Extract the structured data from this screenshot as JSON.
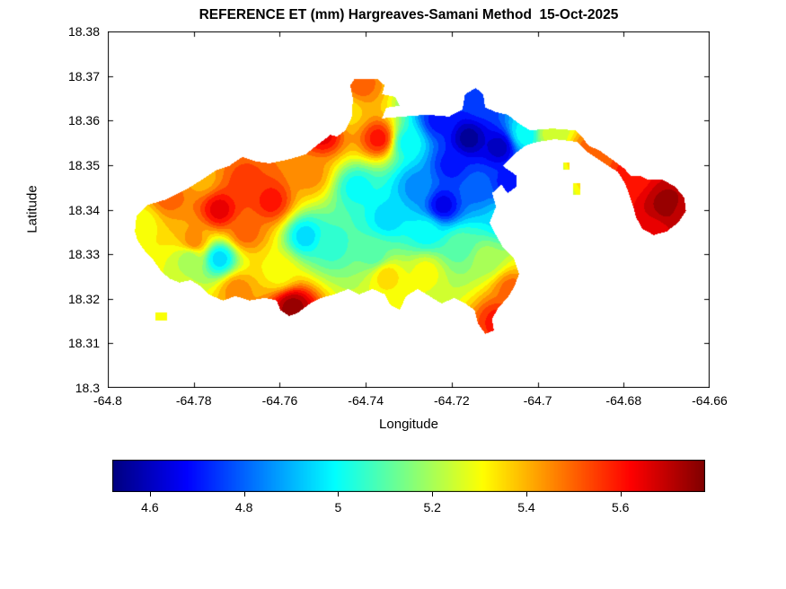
{
  "chart_data": {
    "type": "heatmap",
    "title": "REFERENCE ET (mm) Hargreaves-Samani Method  15-Oct-2025",
    "date_label": "15-Oct-2025",
    "method_label": "Hargreaves-Samani Method",
    "units": "mm",
    "xlabel": "Longitude",
    "ylabel": "Latitude",
    "xlim": [
      -64.8,
      -64.66
    ],
    "ylim": [
      18.3,
      18.38
    ],
    "grid": false,
    "colormap": "jet",
    "colorbar_orientation": "horizontal",
    "value_range": [
      4.52,
      5.78
    ],
    "contour_step": 0.05,
    "x_ticks": [
      {
        "label": "-64.8",
        "value": -64.8
      },
      {
        "label": "-64.78",
        "value": -64.78
      },
      {
        "label": "-64.76",
        "value": -64.76
      },
      {
        "label": "-64.74",
        "value": -64.74
      },
      {
        "label": "-64.72",
        "value": -64.72
      },
      {
        "label": "-64.7",
        "value": -64.7
      },
      {
        "label": "-64.68",
        "value": -64.68
      },
      {
        "label": "-64.66",
        "value": -64.66
      }
    ],
    "y_ticks": [
      {
        "label": "18.38",
        "value": 18.38
      },
      {
        "label": "18.37",
        "value": 18.37
      },
      {
        "label": "18.36",
        "value": 18.36
      },
      {
        "label": "18.35",
        "value": 18.35
      },
      {
        "label": "18.34",
        "value": 18.34
      },
      {
        "label": "18.33",
        "value": 18.33
      },
      {
        "label": "18.32",
        "value": 18.32
      },
      {
        "label": "18.31",
        "value": 18.31
      },
      {
        "label": "18.3",
        "value": 18.3
      }
    ],
    "colorbar_ticks": [
      {
        "label": "4.6",
        "value": 4.6
      },
      {
        "label": "4.8",
        "value": 4.8
      },
      {
        "label": "5",
        "value": 5.0
      },
      {
        "label": "5.2",
        "value": 5.2
      },
      {
        "label": "5.4",
        "value": 5.4
      },
      {
        "label": "5.6",
        "value": 5.6
      }
    ],
    "sample_points_format": [
      "lon",
      "lat",
      "et_mm"
    ],
    "sample_points": [
      [
        -64.792,
        18.337,
        5.3
      ],
      [
        -64.786,
        18.343,
        5.5
      ],
      [
        -64.78,
        18.333,
        5.45
      ],
      [
        -64.781,
        18.329,
        5.2
      ],
      [
        -64.774,
        18.34,
        5.65
      ],
      [
        -64.774,
        18.329,
        4.95
      ],
      [
        -64.768,
        18.346,
        5.55
      ],
      [
        -64.768,
        18.335,
        5.5
      ],
      [
        -64.762,
        18.342,
        5.6
      ],
      [
        -64.76,
        18.326,
        5.3
      ],
      [
        -64.77,
        18.322,
        5.45
      ],
      [
        -64.778,
        18.347,
        5.4
      ],
      [
        -64.753,
        18.348,
        5.45
      ],
      [
        -64.75,
        18.357,
        5.65
      ],
      [
        -64.744,
        18.362,
        5.35
      ],
      [
        -64.741,
        18.368,
        5.5
      ],
      [
        -64.737,
        18.356,
        5.6
      ],
      [
        -64.754,
        18.334,
        4.95
      ],
      [
        -64.748,
        18.332,
        5.05
      ],
      [
        -64.742,
        18.345,
        5.0
      ],
      [
        -64.735,
        18.338,
        4.95
      ],
      [
        -64.728,
        18.345,
        4.85
      ],
      [
        -64.73,
        18.355,
        5.0
      ],
      [
        -64.723,
        18.36,
        4.7
      ],
      [
        -64.716,
        18.356,
        4.55
      ],
      [
        -64.709,
        18.354,
        4.6
      ],
      [
        -64.703,
        18.357,
        5.0
      ],
      [
        -64.713,
        18.364,
        4.75
      ],
      [
        -64.722,
        18.341,
        4.65
      ],
      [
        -64.714,
        18.345,
        4.8
      ],
      [
        -64.707,
        18.346,
        4.7
      ],
      [
        -64.72,
        18.35,
        4.7
      ],
      [
        -64.718,
        18.332,
        5.1
      ],
      [
        -64.726,
        18.326,
        5.3
      ],
      [
        -64.735,
        18.325,
        5.35
      ],
      [
        -64.757,
        18.318,
        5.75
      ],
      [
        -64.731,
        18.318,
        5.3
      ],
      [
        -64.712,
        18.329,
        5.2
      ],
      [
        -64.708,
        18.338,
        4.95
      ],
      [
        -64.706,
        18.322,
        5.5
      ],
      [
        -64.709,
        18.315,
        5.6
      ],
      [
        -64.7,
        18.33,
        5.35
      ],
      [
        -64.697,
        18.357,
        5.25
      ],
      [
        -64.688,
        18.353,
        5.5
      ],
      [
        -64.678,
        18.348,
        5.6
      ],
      [
        -64.67,
        18.341,
        5.75
      ],
      [
        -64.673,
        18.335,
        5.65
      ],
      [
        -64.666,
        18.339,
        5.7
      ],
      [
        -64.738,
        18.33,
        5.1
      ],
      [
        -64.726,
        18.335,
        5.0
      ]
    ],
    "region_polygons": [
      [
        [
          -64.7937,
          18.3351
        ],
        [
          -64.7933,
          18.3387
        ],
        [
          -64.7906,
          18.3411
        ],
        [
          -64.7864,
          18.3423
        ],
        [
          -64.7822,
          18.3443
        ],
        [
          -64.7781,
          18.3467
        ],
        [
          -64.7749,
          18.3488
        ],
        [
          -64.7718,
          18.3498
        ],
        [
          -64.7687,
          18.3518
        ],
        [
          -64.7655,
          18.3508
        ],
        [
          -64.7624,
          18.3504
        ],
        [
          -64.7582,
          18.3512
        ],
        [
          -64.754,
          18.3524
        ],
        [
          -64.7509,
          18.3548
        ],
        [
          -64.7482,
          18.3568
        ],
        [
          -64.7467,
          18.3564
        ],
        [
          -64.7447,
          18.3578
        ],
        [
          -64.7432,
          18.3609
        ],
        [
          -64.743,
          18.3649
        ],
        [
          -64.7436,
          18.3679
        ],
        [
          -64.7426,
          18.3693
        ],
        [
          -64.7373,
          18.3693
        ],
        [
          -64.7356,
          18.3679
        ],
        [
          -64.7362,
          18.3659
        ],
        [
          -64.7331,
          18.3653
        ],
        [
          -64.7321,
          18.3633
        ],
        [
          -64.7352,
          18.3629
        ],
        [
          -64.7362,
          18.3605
        ],
        [
          -64.7311,
          18.3609
        ],
        [
          -64.7258,
          18.3613
        ],
        [
          -64.7206,
          18.3609
        ],
        [
          -64.7175,
          18.3625
        ],
        [
          -64.7169,
          18.3659
        ],
        [
          -64.7144,
          18.3673
        ],
        [
          -64.7127,
          18.3659
        ],
        [
          -64.7122,
          18.3629
        ],
        [
          -64.7097,
          18.3619
        ],
        [
          -64.707,
          18.3613
        ],
        [
          -64.7043,
          18.3593
        ],
        [
          -64.7018,
          18.3578
        ],
        [
          -64.6966,
          18.3582
        ],
        [
          -64.6913,
          18.3578
        ],
        [
          -64.6897,
          18.3564
        ],
        [
          -64.6882,
          18.3544
        ],
        [
          -64.6855,
          18.3532
        ],
        [
          -64.6826,
          18.3512
        ],
        [
          -64.6798,
          18.3492
        ],
        [
          -64.6784,
          18.3476
        ],
        [
          -64.6763,
          18.3476
        ],
        [
          -64.6742,
          18.3467
        ],
        [
          -64.6709,
          18.3467
        ],
        [
          -64.668,
          18.3451
        ],
        [
          -64.6659,
          18.3427
        ],
        [
          -64.6655,
          18.3397
        ],
        [
          -64.6673,
          18.3371
        ],
        [
          -64.67,
          18.3351
        ],
        [
          -64.673,
          18.3343
        ],
        [
          -64.6757,
          18.3357
        ],
        [
          -64.6771,
          18.3383
        ],
        [
          -64.6779,
          18.3411
        ],
        [
          -64.6788,
          18.3437
        ],
        [
          -64.6796,
          18.3457
        ],
        [
          -64.6813,
          18.3484
        ],
        [
          -64.6851,
          18.3508
        ],
        [
          -64.6888,
          18.3532
        ],
        [
          -64.6909,
          18.3552
        ],
        [
          -64.6959,
          18.3558
        ],
        [
          -64.7001,
          18.3552
        ],
        [
          -64.7028,
          18.3544
        ],
        [
          -64.7055,
          18.3524
        ],
        [
          -64.7081,
          18.3498
        ],
        [
          -64.7049,
          18.3476
        ],
        [
          -64.7049,
          18.3452
        ],
        [
          -64.707,
          18.3437
        ],
        [
          -64.7085,
          18.3457
        ],
        [
          -64.7106,
          18.3437
        ],
        [
          -64.7097,
          18.3407
        ],
        [
          -64.7112,
          18.3371
        ],
        [
          -64.7097,
          18.3343
        ],
        [
          -64.7081,
          18.3316
        ],
        [
          -64.7055,
          18.329
        ],
        [
          -64.7043,
          18.3256
        ],
        [
          -64.7055,
          18.3226
        ],
        [
          -64.707,
          18.3202
        ],
        [
          -64.7091,
          18.3181
        ],
        [
          -64.7106,
          18.3155
        ],
        [
          -64.7102,
          18.3129
        ],
        [
          -64.7122,
          18.3121
        ],
        [
          -64.7139,
          18.3145
        ],
        [
          -64.7147,
          18.3175
        ],
        [
          -64.7168,
          18.3189
        ],
        [
          -64.7195,
          18.3202
        ],
        [
          -64.7223,
          18.3189
        ],
        [
          -64.7252,
          18.3206
        ],
        [
          -64.7279,
          18.3222
        ],
        [
          -64.7306,
          18.3206
        ],
        [
          -64.7321,
          18.3175
        ],
        [
          -64.7342,
          18.3185
        ],
        [
          -64.7356,
          18.321
        ],
        [
          -64.7384,
          18.3222
        ],
        [
          -64.7415,
          18.321
        ],
        [
          -64.744,
          18.3222
        ],
        [
          -64.7473,
          18.321
        ],
        [
          -64.7503,
          18.3202
        ],
        [
          -64.753,
          18.3189
        ],
        [
          -64.7557,
          18.3169
        ],
        [
          -64.7578,
          18.3161
        ],
        [
          -64.7599,
          18.3175
        ],
        [
          -64.7607,
          18.3196
        ],
        [
          -64.7634,
          18.3202
        ],
        [
          -64.767,
          18.3196
        ],
        [
          -64.7703,
          18.3206
        ],
        [
          -64.7732,
          18.3196
        ],
        [
          -64.7766,
          18.321
        ],
        [
          -64.7787,
          18.323
        ],
        [
          -64.7808,
          18.3242
        ],
        [
          -64.7833,
          18.3236
        ],
        [
          -64.7858,
          18.3246
        ],
        [
          -64.7879,
          18.3266
        ],
        [
          -64.7896,
          18.329
        ],
        [
          -64.7916,
          18.331
        ],
        [
          -64.7931,
          18.3331
        ]
      ],
      [
        [
          -64.789,
          18.317
        ],
        [
          -64.7862,
          18.317
        ],
        [
          -64.7862,
          18.3152
        ],
        [
          -64.789,
          18.3152
        ]
      ],
      [
        [
          -64.6917,
          18.346
        ],
        [
          -64.69,
          18.346
        ],
        [
          -64.69,
          18.3434
        ],
        [
          -64.6917,
          18.3434
        ]
      ],
      [
        [
          -64.694,
          18.3505
        ],
        [
          -64.6925,
          18.3505
        ],
        [
          -64.6925,
          18.349
        ],
        [
          -64.694,
          18.349
        ]
      ]
    ]
  }
}
